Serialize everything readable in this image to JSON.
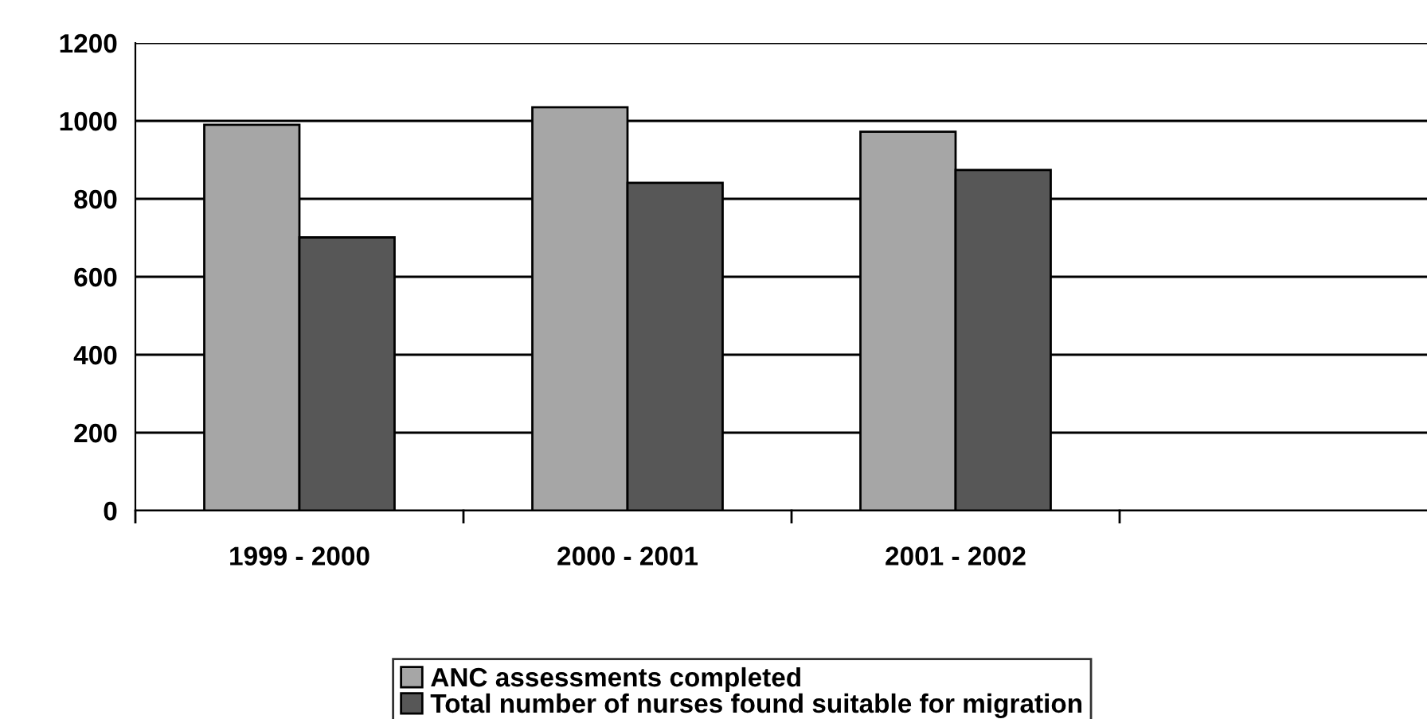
{
  "chart_data": {
    "type": "bar",
    "categories": [
      "1999 - 2000",
      "2000 - 2001",
      "2001 - 2002",
      null
    ],
    "series": [
      {
        "name": "ANC assessments completed",
        "color": "#a6a6a6",
        "values": [
          990,
          1035,
          972,
          null
        ]
      },
      {
        "name": "Total number of nurses found suitable for migration",
        "color": "#575757",
        "values": [
          701,
          841,
          874,
          null
        ]
      }
    ],
    "ylim": [
      0,
      1200
    ],
    "yticks": [
      0,
      200,
      400,
      600,
      800,
      1000,
      1200
    ],
    "grid": "y",
    "legend": "bottom"
  }
}
